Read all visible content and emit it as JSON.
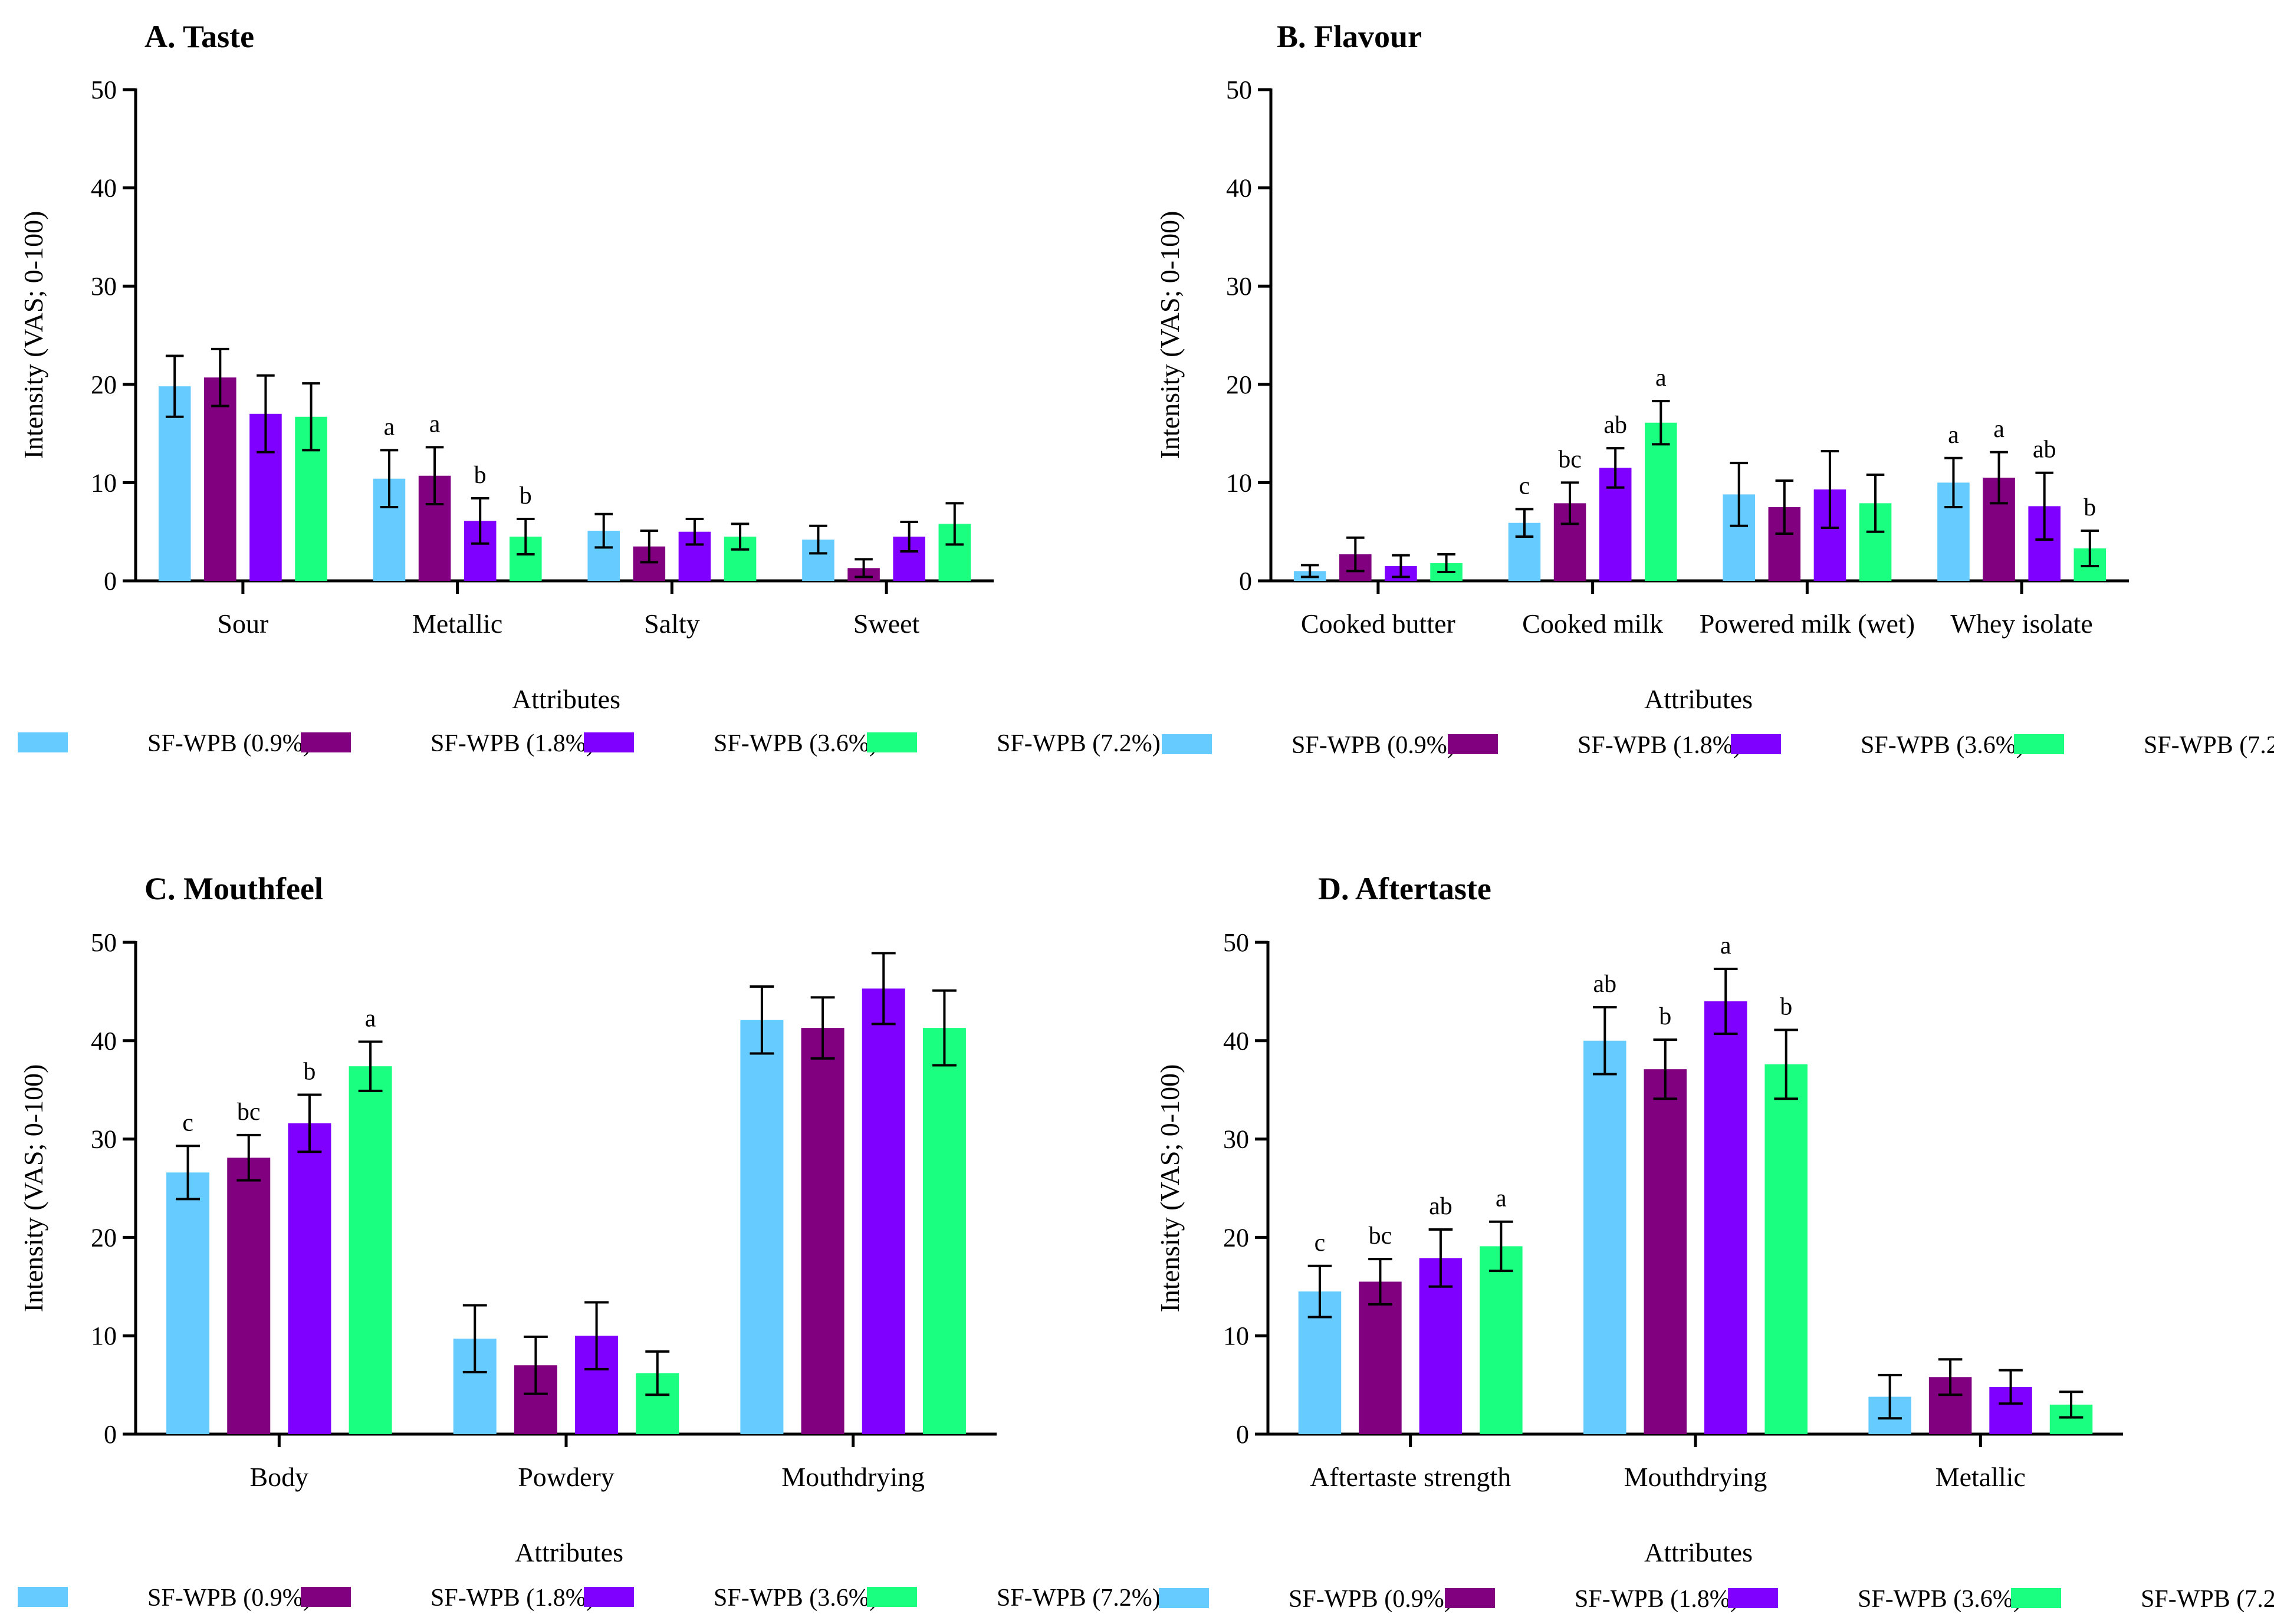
{
  "legend": [
    "SF-WPB (0.9%)",
    "SF-WPB (1.8%)",
    "SF-WPB (3.6%)",
    "SF-WPB (7.2%)"
  ],
  "colors": [
    "#66ccff",
    "#800080",
    "#8000ff",
    "#1aff80"
  ],
  "chart_data": [
    {
      "type": "bar",
      "title": "A. Taste",
      "xlabel": "Attributes",
      "ylabel": "Intensity (VAS; 0-100)",
      "ylim": [
        0,
        50
      ],
      "yticks": [
        0,
        10,
        20,
        30,
        40,
        50
      ],
      "categories": [
        "Sour",
        "Metallic",
        "Salty",
        "Sweet"
      ],
      "series": [
        {
          "name": "SF-WPB (0.9%)",
          "values": [
            19.8,
            10.4,
            5.1,
            4.2
          ],
          "errors": [
            3.1,
            2.9,
            1.7,
            1.4
          ],
          "labels": [
            "",
            "a",
            "",
            ""
          ]
        },
        {
          "name": "SF-WPB (1.8%)",
          "values": [
            20.7,
            10.7,
            3.5,
            1.3
          ],
          "errors": [
            2.9,
            2.9,
            1.6,
            0.9
          ],
          "labels": [
            "",
            "a",
            "",
            ""
          ]
        },
        {
          "name": "SF-WPB (3.6%)",
          "values": [
            17.0,
            6.1,
            5.0,
            4.5
          ],
          "errors": [
            3.9,
            2.3,
            1.3,
            1.5
          ],
          "labels": [
            "",
            "b",
            "",
            ""
          ]
        },
        {
          "name": "SF-WPB (7.2%)",
          "values": [
            16.7,
            4.5,
            4.5,
            5.8
          ],
          "errors": [
            3.4,
            1.8,
            1.3,
            2.1
          ],
          "labels": [
            "",
            "b",
            "",
            ""
          ]
        }
      ]
    },
    {
      "type": "bar",
      "title": "B. Flavour",
      "xlabel": "Attributes",
      "ylabel": "Intensity (VAS; 0-100)",
      "ylim": [
        0,
        50
      ],
      "yticks": [
        0,
        10,
        20,
        30,
        40,
        50
      ],
      "categories": [
        "Cooked butter",
        "Cooked milk",
        "Powered milk (wet)",
        "Whey isolate"
      ],
      "series": [
        {
          "name": "SF-WPB (0.9%)",
          "values": [
            1.0,
            5.9,
            8.8,
            10.0
          ],
          "errors": [
            0.6,
            1.4,
            3.2,
            2.5
          ],
          "labels": [
            "",
            "c",
            "",
            "a"
          ]
        },
        {
          "name": "SF-WPB (1.8%)",
          "values": [
            2.7,
            7.9,
            7.5,
            10.5
          ],
          "errors": [
            1.7,
            2.1,
            2.7,
            2.6
          ],
          "labels": [
            "",
            "bc",
            "",
            "a"
          ]
        },
        {
          "name": "SF-WPB (3.6%)",
          "values": [
            1.5,
            11.5,
            9.3,
            7.6
          ],
          "errors": [
            1.1,
            2.0,
            3.9,
            3.4
          ],
          "labels": [
            "",
            "ab",
            "",
            "ab"
          ]
        },
        {
          "name": "SF-WPB (7.2%)",
          "values": [
            1.8,
            16.1,
            7.9,
            3.3
          ],
          "errors": [
            0.9,
            2.2,
            2.9,
            1.8
          ],
          "labels": [
            "",
            "a",
            "",
            "b"
          ]
        }
      ]
    },
    {
      "type": "bar",
      "title": "C. Mouthfeel",
      "xlabel": "Attributes",
      "ylabel": "Intensity (VAS; 0-100)",
      "ylim": [
        0,
        50
      ],
      "yticks": [
        0,
        10,
        20,
        30,
        40,
        50
      ],
      "categories": [
        "Body",
        "Powdery",
        "Mouthdrying"
      ],
      "series": [
        {
          "name": "SF-WPB (0.9%)",
          "values": [
            26.6,
            9.7,
            42.1
          ],
          "errors": [
            2.7,
            3.4,
            3.4
          ],
          "labels": [
            "c",
            "",
            ""
          ]
        },
        {
          "name": "SF-WPB (1.8%)",
          "values": [
            28.1,
            7.0,
            41.3
          ],
          "errors": [
            2.3,
            2.9,
            3.1
          ],
          "labels": [
            "bc",
            "",
            ""
          ]
        },
        {
          "name": "SF-WPB (3.6%)",
          "values": [
            31.6,
            10.0,
            45.3
          ],
          "errors": [
            2.9,
            3.4,
            3.6
          ],
          "labels": [
            "b",
            "",
            ""
          ]
        },
        {
          "name": "SF-WPB (7.2%)",
          "values": [
            37.4,
            6.2,
            41.3
          ],
          "errors": [
            2.5,
            2.2,
            3.8
          ],
          "labels": [
            "a",
            "",
            ""
          ]
        }
      ]
    },
    {
      "type": "bar",
      "title": "D. Aftertaste",
      "xlabel": "Attributes",
      "ylabel": "Intensity (VAS; 0-100)",
      "ylim": [
        0,
        50
      ],
      "yticks": [
        0,
        10,
        20,
        30,
        40,
        50
      ],
      "categories": [
        "Aftertaste strength",
        "Mouthdrying",
        "Metallic"
      ],
      "series": [
        {
          "name": "SF-WPB (0.9%)",
          "values": [
            14.5,
            40.0,
            3.8
          ],
          "errors": [
            2.6,
            3.4,
            2.2
          ],
          "labels": [
            "c",
            "ab",
            ""
          ]
        },
        {
          "name": "SF-WPB (1.8%)",
          "values": [
            15.5,
            37.1,
            5.8
          ],
          "errors": [
            2.3,
            3.0,
            1.8
          ],
          "labels": [
            "bc",
            "b",
            ""
          ]
        },
        {
          "name": "SF-WPB (3.6%)",
          "values": [
            17.9,
            44.0,
            4.8
          ],
          "errors": [
            2.9,
            3.3,
            1.7
          ],
          "labels": [
            "ab",
            "a",
            ""
          ]
        },
        {
          "name": "SF-WPB (7.2%)",
          "values": [
            19.1,
            37.6,
            3.0
          ],
          "errors": [
            2.5,
            3.5,
            1.3
          ],
          "labels": [
            "a",
            "b",
            ""
          ]
        }
      ]
    }
  ]
}
